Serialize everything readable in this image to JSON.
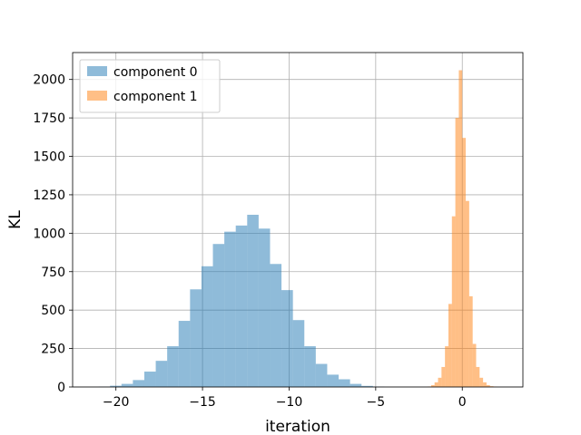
{
  "chart_data": {
    "type": "histogram",
    "title": "",
    "xlabel": "iteration",
    "ylabel": "KL",
    "xlim": [
      -22.5,
      3.5
    ],
    "ylim": [
      0,
      2175
    ],
    "xticks": [
      -20,
      -15,
      -10,
      -5,
      0
    ],
    "yticks": [
      0,
      250,
      500,
      750,
      1000,
      1250,
      1500,
      1750,
      2000
    ],
    "grid": true,
    "legend_position": "top-left",
    "series": [
      {
        "name": "component 0",
        "color": "#1f77b4",
        "alpha": 0.5,
        "bins": [
          {
            "x0": -21.0,
            "x1": -20.34,
            "count": 2
          },
          {
            "x0": -20.34,
            "x1": -19.68,
            "count": 8
          },
          {
            "x0": -19.68,
            "x1": -19.02,
            "count": 20
          },
          {
            "x0": -19.02,
            "x1": -18.36,
            "count": 45
          },
          {
            "x0": -18.36,
            "x1": -17.7,
            "count": 100
          },
          {
            "x0": -17.7,
            "x1": -17.04,
            "count": 170
          },
          {
            "x0": -17.04,
            "x1": -16.38,
            "count": 265
          },
          {
            "x0": -16.38,
            "x1": -15.72,
            "count": 430
          },
          {
            "x0": -15.72,
            "x1": -15.06,
            "count": 635
          },
          {
            "x0": -15.06,
            "x1": -14.4,
            "count": 785
          },
          {
            "x0": -14.4,
            "x1": -13.74,
            "count": 930
          },
          {
            "x0": -13.74,
            "x1": -13.08,
            "count": 1010
          },
          {
            "x0": -13.08,
            "x1": -12.42,
            "count": 1050
          },
          {
            "x0": -12.42,
            "x1": -11.76,
            "count": 1120
          },
          {
            "x0": -11.76,
            "x1": -11.1,
            "count": 1030
          },
          {
            "x0": -11.1,
            "x1": -10.44,
            "count": 800
          },
          {
            "x0": -10.44,
            "x1": -9.78,
            "count": 630
          },
          {
            "x0": -9.78,
            "x1": -9.12,
            "count": 435
          },
          {
            "x0": -9.12,
            "x1": -8.46,
            "count": 265
          },
          {
            "x0": -8.46,
            "x1": -7.8,
            "count": 150
          },
          {
            "x0": -7.8,
            "x1": -7.14,
            "count": 80
          },
          {
            "x0": -7.14,
            "x1": -6.48,
            "count": 50
          },
          {
            "x0": -6.48,
            "x1": -5.82,
            "count": 20
          },
          {
            "x0": -5.82,
            "x1": -5.16,
            "count": 7
          },
          {
            "x0": -5.16,
            "x1": -4.5,
            "count": 2
          }
        ]
      },
      {
        "name": "component 1",
        "color": "#ff7f0e",
        "alpha": 0.5,
        "bins": [
          {
            "x0": -2.0,
            "x1": -1.8,
            "count": 3
          },
          {
            "x0": -1.8,
            "x1": -1.6,
            "count": 12
          },
          {
            "x0": -1.6,
            "x1": -1.4,
            "count": 30
          },
          {
            "x0": -1.4,
            "x1": -1.2,
            "count": 60
          },
          {
            "x0": -1.2,
            "x1": -1.0,
            "count": 130
          },
          {
            "x0": -1.0,
            "x1": -0.8,
            "count": 265
          },
          {
            "x0": -0.8,
            "x1": -0.6,
            "count": 540
          },
          {
            "x0": -0.6,
            "x1": -0.4,
            "count": 1110
          },
          {
            "x0": -0.4,
            "x1": -0.2,
            "count": 1750
          },
          {
            "x0": -0.2,
            "x1": 0.0,
            "count": 2060
          },
          {
            "x0": 0.0,
            "x1": 0.2,
            "count": 1620
          },
          {
            "x0": 0.2,
            "x1": 0.4,
            "count": 1210
          },
          {
            "x0": 0.4,
            "x1": 0.6,
            "count": 590
          },
          {
            "x0": 0.6,
            "x1": 0.8,
            "count": 280
          },
          {
            "x0": 0.8,
            "x1": 1.0,
            "count": 130
          },
          {
            "x0": 1.0,
            "x1": 1.2,
            "count": 60
          },
          {
            "x0": 1.2,
            "x1": 1.4,
            "count": 30
          },
          {
            "x0": 1.4,
            "x1": 1.6,
            "count": 12
          },
          {
            "x0": 1.6,
            "x1": 1.8,
            "count": 5
          },
          {
            "x0": 1.8,
            "x1": 2.0,
            "count": 2
          }
        ]
      }
    ]
  }
}
